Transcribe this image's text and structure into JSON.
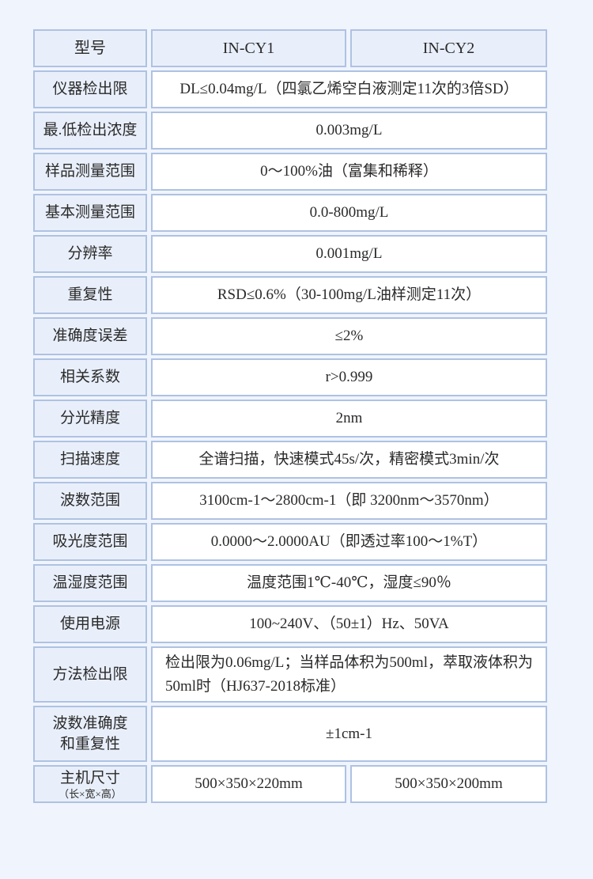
{
  "page": {
    "background_color": "#f0f4fd",
    "cell_fill_color": "#e9effa",
    "border_color": "#aec2e2",
    "text_color": "#2a2a2a"
  },
  "table": {
    "header": {
      "label": "型号",
      "model1": "IN-CY1",
      "model2": "IN-CY2"
    },
    "rows": [
      {
        "label": "仪器检出限",
        "value": "DL≤0.04mg/L（四氯乙烯空白液测定11次的3倍SD）"
      },
      {
        "label": "最.低检出浓度",
        "value": "0.003mg/L"
      },
      {
        "label": "样品测量范围",
        "value": "0～100%油（富集和稀释）"
      },
      {
        "label": "基本测量范围",
        "value": "0.0-800mg/L"
      },
      {
        "label": "分辨率",
        "value": "0.001mg/L"
      },
      {
        "label": "重复性",
        "value": "RSD≤0.6%（30-100mg/L油样测定11次）"
      },
      {
        "label": "准确度误差",
        "value": "≤2%"
      },
      {
        "label": "相关系数",
        "value": "r>0.999"
      },
      {
        "label": "分光精度",
        "value": "2nm"
      },
      {
        "label": "扫描速度",
        "value": "全谱扫描，快速模式45s/次，精密模式3min/次"
      },
      {
        "label": "波数范围",
        "value": "3100cm-1～2800cm-1（即 3200nm～3570nm）"
      },
      {
        "label": "吸光度范围",
        "value": "0.0000～2.0000AU（即透过率100～1%T）"
      },
      {
        "label": "温湿度范围",
        "value": "温度范围1℃-40℃，湿度≤90％"
      },
      {
        "label": "使用电源",
        "value": "100~240V、（50±1）Hz、50VA"
      },
      {
        "label": "方法检出限",
        "value": "检出限为0.06mg/L；当样品体积为500ml，萃取液体积为50ml时（HJ637-2018标准）"
      }
    ],
    "wavenumber_accuracy_row": {
      "label_line1": "波数准确度",
      "label_line2": "和重复性",
      "value": "±1cm-1"
    },
    "size_row": {
      "label": "主机尺寸",
      "sublabel": "（长×宽×高）",
      "value_model1": "500×350×220mm",
      "value_model2": "500×350×200mm"
    }
  }
}
